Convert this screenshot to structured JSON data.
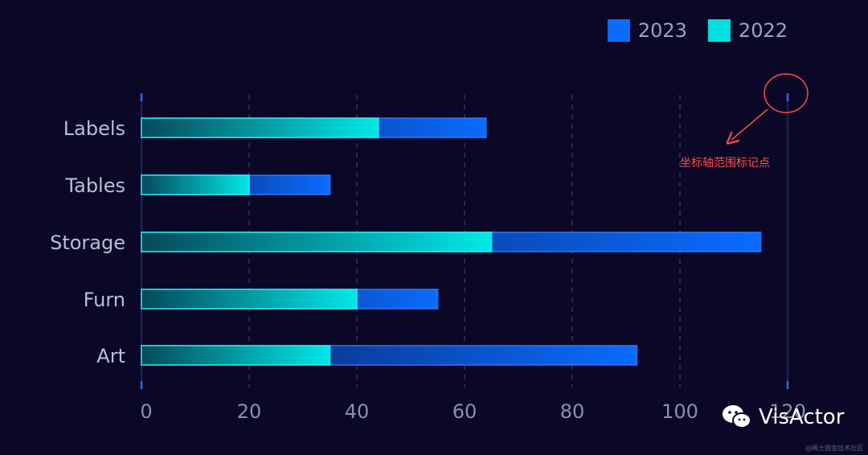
{
  "legend": {
    "items": [
      {
        "label": "2023",
        "color": "#0a6cff"
      },
      {
        "label": "2022",
        "color": "#00e0e0"
      }
    ]
  },
  "annotation": {
    "text": "坐标轴范围标记点",
    "color": "#ff4a4a"
  },
  "watermark": {
    "brand": "VisActor",
    "sub": "@稀土掘金技术社区"
  },
  "chart_data": {
    "type": "bar",
    "orientation": "horizontal",
    "categories": [
      "Labels",
      "Tables",
      "Storage",
      "Furn",
      "Art"
    ],
    "series": [
      {
        "name": "2023",
        "values": [
          64,
          35,
          115,
          55,
          92
        ],
        "color": "#0a6cff"
      },
      {
        "name": "2022",
        "values": [
          44,
          20,
          65,
          40,
          35
        ],
        "color": "#00e0e0"
      }
    ],
    "xlim": [
      0,
      120
    ],
    "xticks": [
      0,
      20,
      40,
      60,
      80,
      100,
      120
    ],
    "grid": true,
    "legend_position": "top-right"
  }
}
